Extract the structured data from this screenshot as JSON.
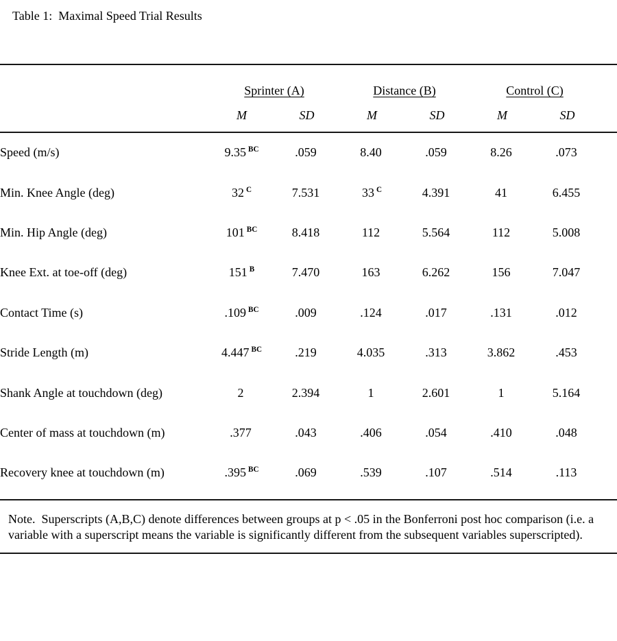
{
  "title": "Table 1:  Maximal Speed Trial Results",
  "table": {
    "group_headers": [
      {
        "label": "Sprinter (A)"
      },
      {
        "label": "Distance (B)"
      },
      {
        "label": "Control (C)"
      }
    ],
    "stat_headers": [
      "M",
      "SD",
      "M",
      "SD",
      "M",
      "SD"
    ],
    "rows": [
      {
        "label": "Speed (m/s)",
        "c": [
          {
            "v": "9.35",
            "s": "BC"
          },
          {
            "v": ".059",
            "s": ""
          },
          {
            "v": "8.40",
            "s": ""
          },
          {
            "v": ".059",
            "s": ""
          },
          {
            "v": "8.26",
            "s": ""
          },
          {
            "v": ".073",
            "s": ""
          }
        ]
      },
      {
        "label": "Min. Knee Angle (deg)",
        "c": [
          {
            "v": "32",
            "s": "C"
          },
          {
            "v": "7.531",
            "s": ""
          },
          {
            "v": "33",
            "s": "C"
          },
          {
            "v": "4.391",
            "s": ""
          },
          {
            "v": "41",
            "s": ""
          },
          {
            "v": "6.455",
            "s": ""
          }
        ]
      },
      {
        "label": "Min. Hip Angle (deg)",
        "c": [
          {
            "v": "101",
            "s": "BC"
          },
          {
            "v": "8.418",
            "s": ""
          },
          {
            "v": "112",
            "s": ""
          },
          {
            "v": "5.564",
            "s": ""
          },
          {
            "v": "112",
            "s": ""
          },
          {
            "v": "5.008",
            "s": ""
          }
        ]
      },
      {
        "label": "Knee Ext. at toe-off (deg)",
        "c": [
          {
            "v": "151",
            "s": "B"
          },
          {
            "v": "7.470",
            "s": ""
          },
          {
            "v": "163",
            "s": ""
          },
          {
            "v": "6.262",
            "s": ""
          },
          {
            "v": "156",
            "s": ""
          },
          {
            "v": "7.047",
            "s": ""
          }
        ]
      },
      {
        "label": "Contact Time (s)",
        "c": [
          {
            "v": ".109",
            "s": "BC"
          },
          {
            "v": ".009",
            "s": ""
          },
          {
            "v": ".124",
            "s": ""
          },
          {
            "v": ".017",
            "s": ""
          },
          {
            "v": ".131",
            "s": ""
          },
          {
            "v": ".012",
            "s": ""
          }
        ]
      },
      {
        "label": "Stride Length (m)",
        "c": [
          {
            "v": "4.447",
            "s": "BC"
          },
          {
            "v": ".219",
            "s": ""
          },
          {
            "v": "4.035",
            "s": ""
          },
          {
            "v": ".313",
            "s": ""
          },
          {
            "v": "3.862",
            "s": ""
          },
          {
            "v": ".453",
            "s": ""
          }
        ]
      },
      {
        "label": "Shank Angle at touchdown (deg)",
        "c": [
          {
            "v": "2",
            "s": ""
          },
          {
            "v": "2.394",
            "s": ""
          },
          {
            "v": "1",
            "s": ""
          },
          {
            "v": "2.601",
            "s": ""
          },
          {
            "v": "1",
            "s": ""
          },
          {
            "v": "5.164",
            "s": ""
          }
        ]
      },
      {
        "label": "Center of mass at touchdown (m)",
        "c": [
          {
            "v": ".377",
            "s": ""
          },
          {
            "v": ".043",
            "s": ""
          },
          {
            "v": ".406",
            "s": ""
          },
          {
            "v": ".054",
            "s": ""
          },
          {
            "v": ".410",
            "s": ""
          },
          {
            "v": ".048",
            "s": ""
          }
        ]
      },
      {
        "label": "Recovery knee at touchdown (m)",
        "c": [
          {
            "v": ".395",
            "s": "BC"
          },
          {
            "v": ".069",
            "s": ""
          },
          {
            "v": ".539",
            "s": ""
          },
          {
            "v": ".107",
            "s": ""
          },
          {
            "v": ".514",
            "s": ""
          },
          {
            "v": ".113",
            "s": ""
          }
        ]
      }
    ]
  },
  "note": "Note.  Superscripts (A,B,C) denote differences between groups at p < .05 in the Bonferroni post hoc comparison (i.e. a variable with a superscript means the variable is significantly different from the subsequent variables superscripted)."
}
